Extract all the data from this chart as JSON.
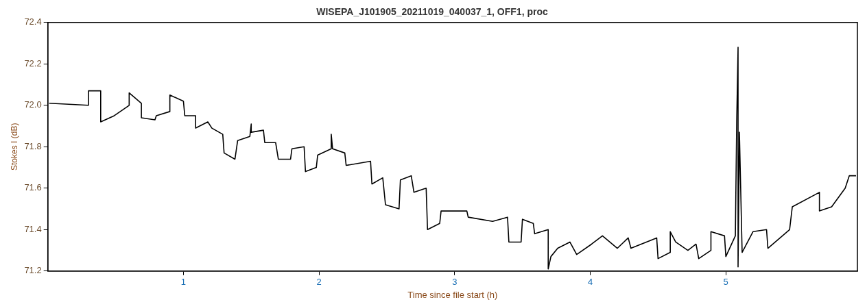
{
  "chart_data": {
    "type": "line",
    "title": "WISEPA_J101905_20211019_040037_1, OFF1, proc",
    "xlabel": "Time since file start (h)",
    "ylabel": "Stokes I (dB)",
    "xlim": [
      0,
      5.97
    ],
    "xticks": [
      1,
      2,
      3,
      4,
      5
    ],
    "ylim": [
      71.2,
      72.4
    ],
    "yticks": [
      71.2,
      71.4,
      71.6,
      71.8,
      {
        "value": 72,
        "label": "72.0"
      },
      72.2,
      72.4
    ],
    "grid": false,
    "legend": false,
    "marker": "none",
    "line_style": "solid",
    "series": [
      {
        "color": "#000000",
        "x": [
          0.01,
          0.3,
          0.3,
          0.39,
          0.39,
          0.49,
          0.6,
          0.6,
          0.69,
          0.69,
          0.79,
          0.8,
          0.9,
          0.9,
          1.0,
          1.01,
          1.09,
          1.09,
          1.18,
          1.21,
          1.29,
          1.3,
          1.38,
          1.4,
          1.49,
          1.5,
          1.5,
          1.59,
          1.6,
          1.68,
          1.7,
          1.79,
          1.8,
          1.89,
          1.9,
          1.98,
          1.99,
          2.09,
          2.09,
          2.1,
          2.19,
          2.2,
          2.38,
          2.39,
          2.47,
          2.49,
          2.59,
          2.6,
          2.68,
          2.7,
          2.79,
          2.8,
          2.89,
          2.9,
          3.09,
          3.1,
          3.28,
          3.39,
          3.4,
          3.49,
          3.5,
          3.58,
          3.59,
          3.69,
          3.69,
          3.71,
          3.76,
          3.85,
          3.9,
          4.01,
          4.09,
          4.2,
          4.28,
          4.3,
          4.49,
          4.5,
          4.59,
          4.59,
          4.63,
          4.72,
          4.78,
          4.8,
          4.89,
          4.89,
          4.99,
          5.0,
          5.07,
          5.08,
          5.09,
          5.09,
          5.1,
          5.12,
          5.2,
          5.3,
          5.31,
          5.47,
          5.49,
          5.69,
          5.69,
          5.78,
          5.88,
          5.91,
          5.96
        ],
        "values": [
          72.01,
          72.0,
          72.07,
          72.07,
          71.92,
          71.95,
          72.0,
          72.06,
          72.01,
          71.94,
          71.93,
          71.95,
          71.97,
          72.05,
          72.02,
          71.95,
          71.95,
          71.89,
          71.92,
          71.89,
          71.86,
          71.77,
          71.74,
          71.83,
          71.85,
          71.91,
          71.87,
          71.88,
          71.82,
          71.82,
          71.74,
          71.74,
          71.79,
          71.8,
          71.68,
          71.7,
          71.76,
          71.79,
          71.86,
          71.79,
          71.77,
          71.71,
          71.73,
          71.62,
          71.65,
          71.52,
          71.5,
          71.64,
          71.66,
          71.58,
          71.6,
          71.4,
          71.43,
          71.49,
          71.49,
          71.46,
          71.44,
          71.46,
          71.34,
          71.34,
          71.45,
          71.43,
          71.38,
          71.4,
          71.21,
          71.27,
          71.31,
          71.34,
          71.28,
          71.33,
          71.37,
          71.31,
          71.36,
          71.31,
          71.36,
          71.26,
          71.29,
          71.39,
          71.34,
          71.3,
          71.33,
          71.26,
          71.3,
          71.39,
          71.37,
          71.27,
          71.37,
          71.92,
          72.28,
          71.22,
          71.87,
          71.29,
          71.39,
          71.4,
          71.31,
          71.4,
          71.51,
          71.58,
          71.49,
          71.51,
          71.6,
          71.66,
          71.66
        ]
      }
    ]
  }
}
